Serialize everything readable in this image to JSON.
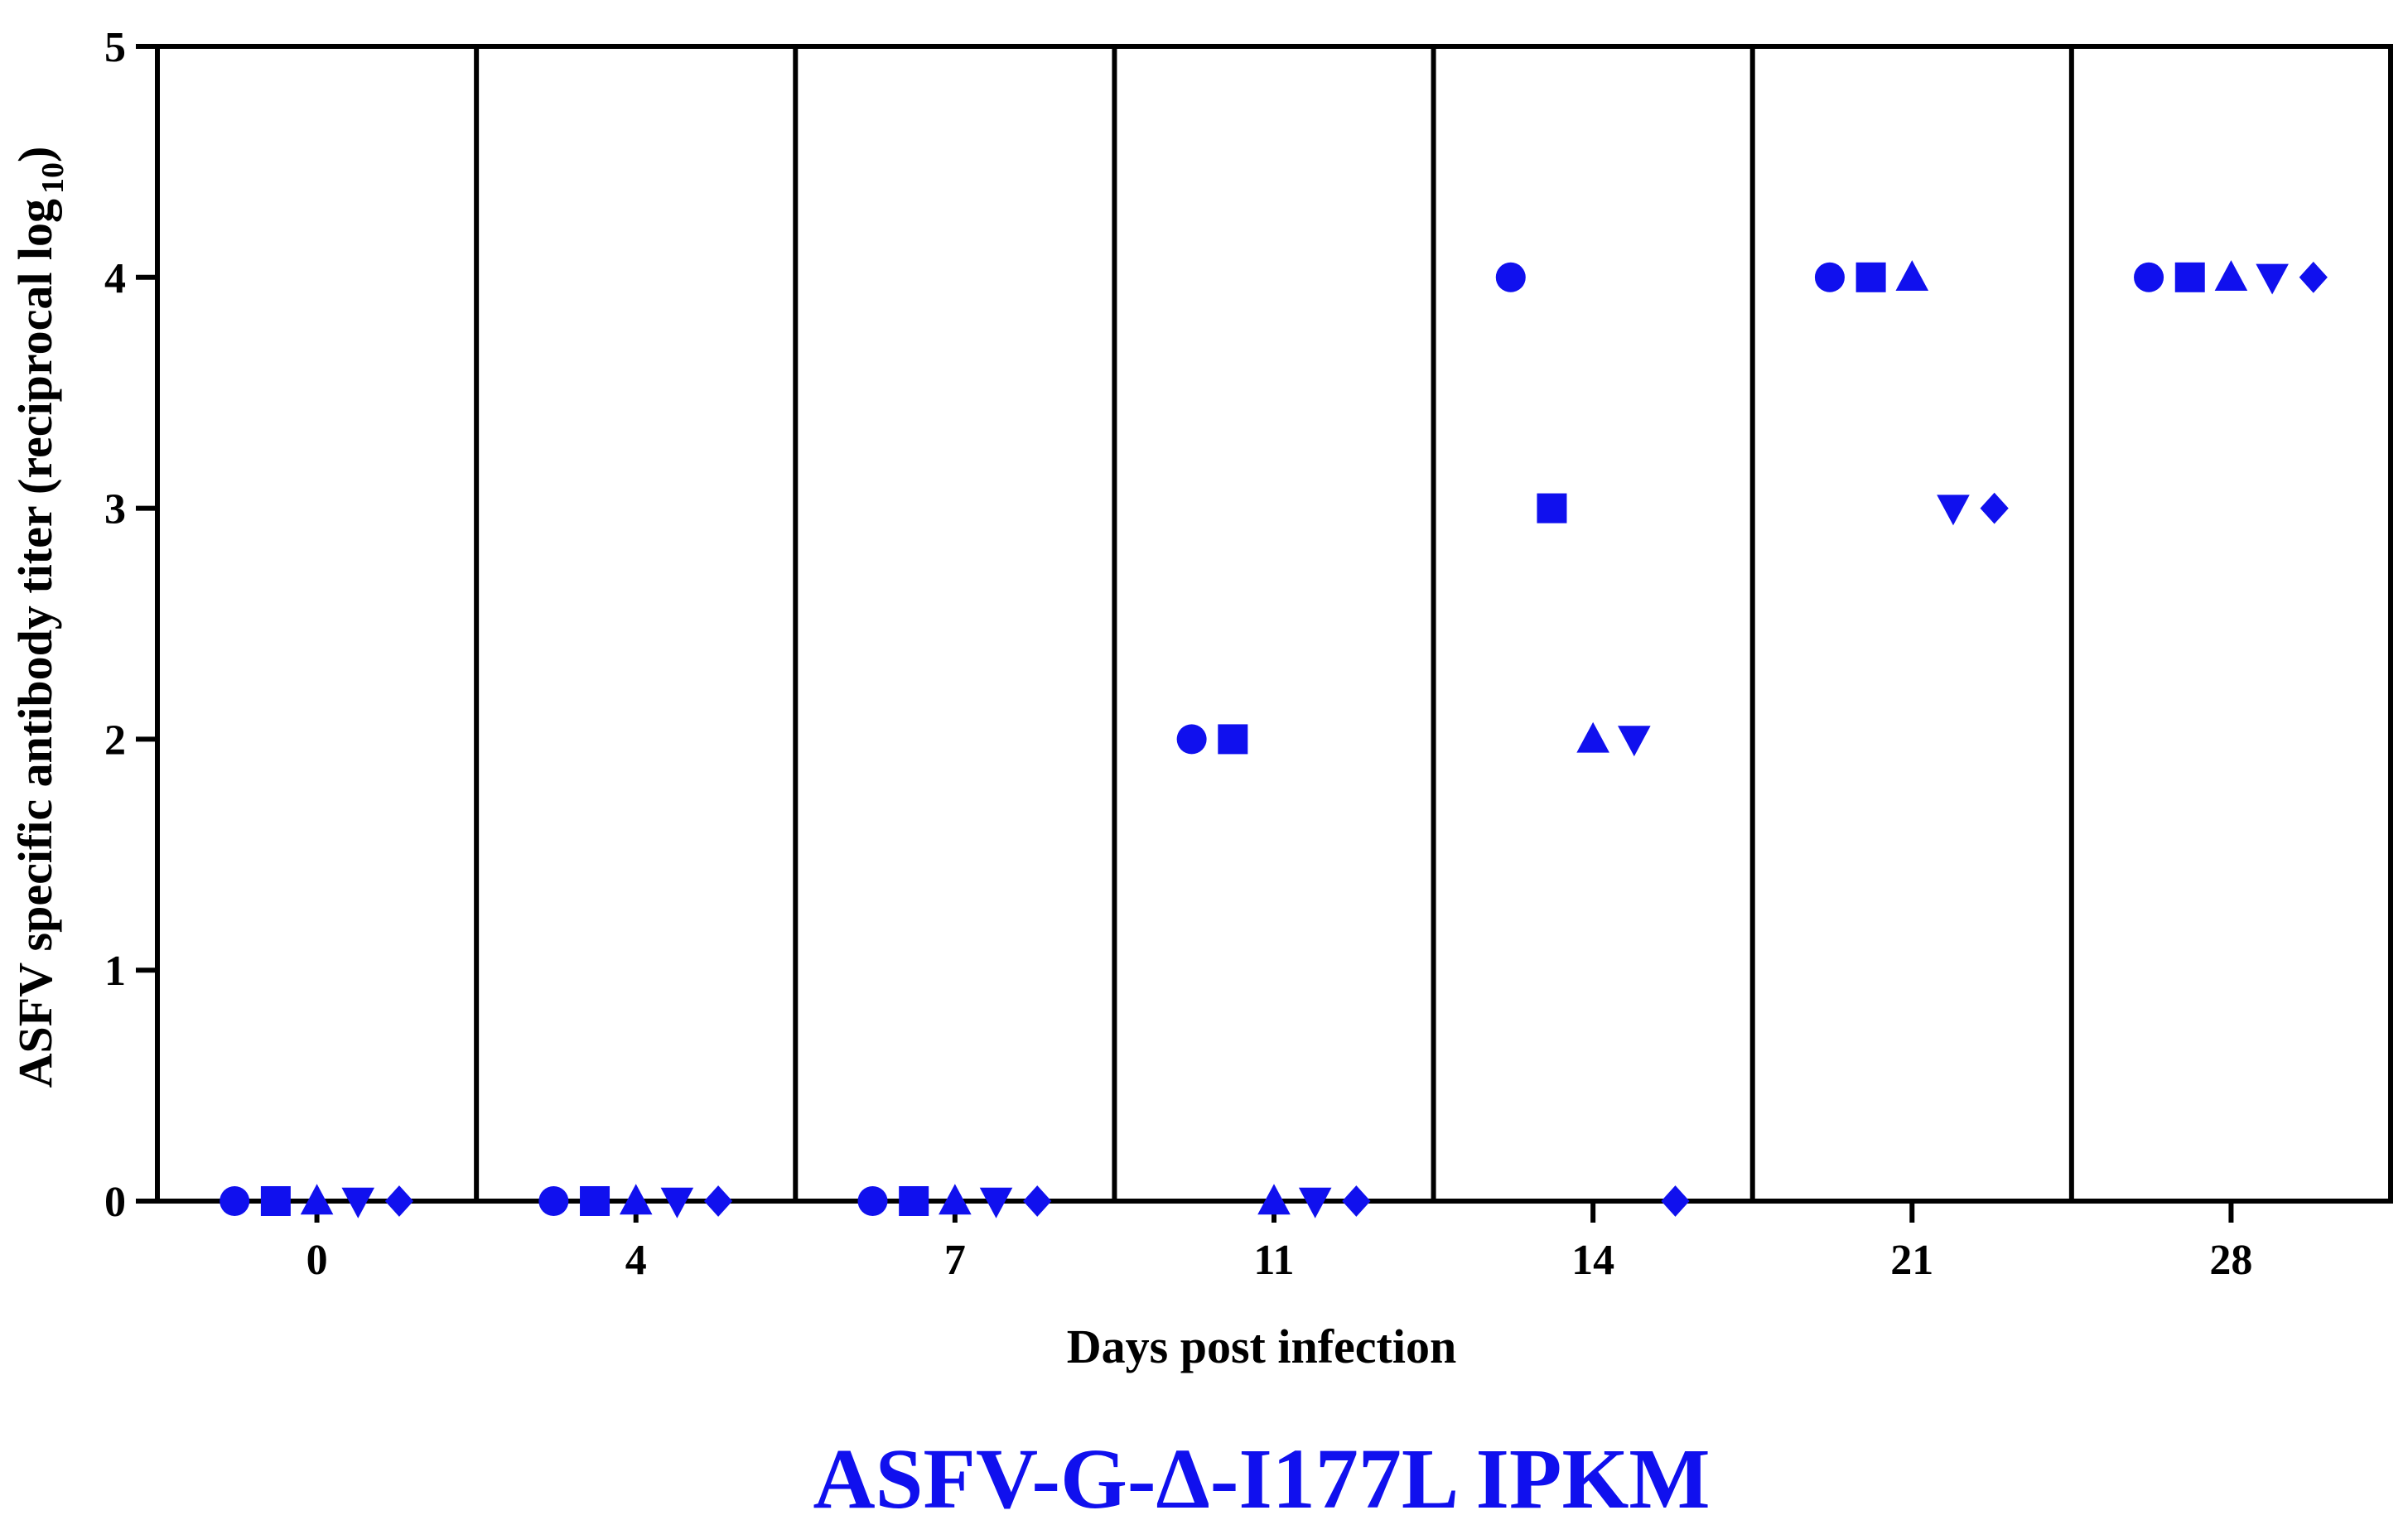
{
  "chart_data": {
    "type": "scatter",
    "ylabel_main": "ASFV specific  antibody titer (reciprocal log",
    "ylabel_sub": "10",
    "ylabel_close": ")",
    "xlabel": "Days post infection",
    "caption": "ASFV-G-Δ-I177L IPKM",
    "categories": [
      "0",
      "4",
      "7",
      "11",
      "14",
      "21",
      "28"
    ],
    "yticks": [
      "0",
      "1",
      "2",
      "3",
      "4",
      "5"
    ],
    "ylim": [
      0,
      5
    ],
    "grid": false,
    "marker_color": "#1010ee",
    "series": [
      {
        "marker": "circle",
        "values": [
          0,
          0,
          0,
          2,
          4,
          4,
          4
        ]
      },
      {
        "marker": "square",
        "values": [
          0,
          0,
          0,
          2,
          3,
          4,
          4
        ]
      },
      {
        "marker": "triangle-up",
        "values": [
          0,
          0,
          0,
          0,
          2,
          4,
          4
        ]
      },
      {
        "marker": "triangle-down",
        "values": [
          0,
          0,
          0,
          0,
          2,
          3,
          4
        ]
      },
      {
        "marker": "diamond",
        "values": [
          0,
          0,
          0,
          0,
          0,
          3,
          4
        ]
      }
    ]
  }
}
